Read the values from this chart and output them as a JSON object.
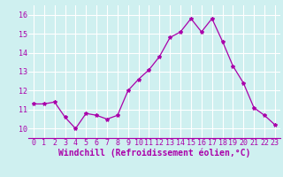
{
  "x": [
    0,
    1,
    2,
    3,
    4,
    5,
    6,
    7,
    8,
    9,
    10,
    11,
    12,
    13,
    14,
    15,
    16,
    17,
    18,
    19,
    20,
    21,
    22,
    23
  ],
  "y": [
    11.3,
    11.3,
    11.4,
    10.6,
    10.0,
    10.8,
    10.7,
    10.5,
    10.7,
    12.0,
    12.6,
    13.1,
    13.8,
    14.8,
    15.1,
    15.8,
    15.1,
    15.8,
    14.6,
    13.3,
    12.4,
    11.1,
    10.7,
    10.2
  ],
  "line_color": "#aa00aa",
  "marker": "*",
  "marker_size": 3,
  "bg_color": "#cff0f0",
  "grid_color": "#ffffff",
  "xlabel": "Windchill (Refroidissement éolien,°C)",
  "xlabel_color": "#aa00aa",
  "tick_color": "#aa00aa",
  "ylim": [
    9.5,
    16.5
  ],
  "xlim": [
    -0.5,
    23.5
  ],
  "yticks": [
    10,
    11,
    12,
    13,
    14,
    15,
    16
  ],
  "xticks": [
    0,
    1,
    2,
    3,
    4,
    5,
    6,
    7,
    8,
    9,
    10,
    11,
    12,
    13,
    14,
    15,
    16,
    17,
    18,
    19,
    20,
    21,
    22,
    23
  ],
  "tick_fontsize": 6,
  "xlabel_fontsize": 7
}
